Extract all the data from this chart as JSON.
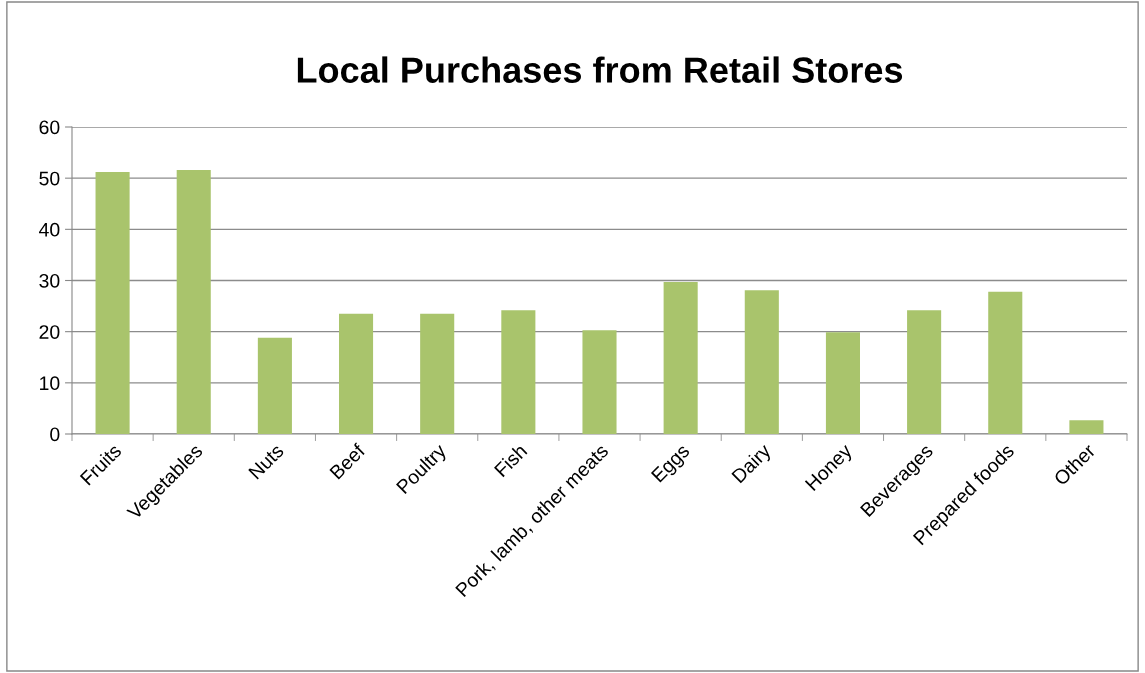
{
  "chart_data": {
    "type": "bar",
    "title": "Local Purchases from Retail Stores",
    "categories": [
      "Fruits",
      "Vegetables",
      "Nuts",
      "Beef",
      "Poultry",
      "Fish",
      "Pork, lamb, other meats",
      "Eggs",
      "Dairy",
      "Honey",
      "Beverages",
      "Prepared foods",
      "Other"
    ],
    "values": [
      51.2,
      51.6,
      18.8,
      23.5,
      23.5,
      24.2,
      20.3,
      29.7,
      28.1,
      19.9,
      24.2,
      27.8,
      2.7
    ],
    "color": "#a9c46c",
    "ylim": [
      0,
      60
    ],
    "yticks": [
      0,
      10,
      20,
      30,
      40,
      50,
      60
    ],
    "grid": "y"
  }
}
